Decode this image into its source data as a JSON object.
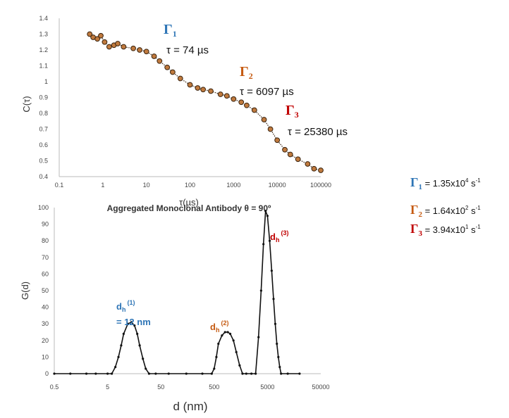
{
  "chart_data": [
    {
      "type": "scatter",
      "title": "",
      "xlabel": "τ(µs)",
      "ylabel": "C(τ)",
      "xscale": "log",
      "xlim": [
        0.1,
        100000
      ],
      "ylim": [
        0.4,
        1.4
      ],
      "x_ticks": [
        "0.1",
        "1",
        "10",
        "100",
        "1000",
        "10000",
        "100000"
      ],
      "y_ticks": [
        "0.4",
        "0.5",
        "0.6",
        "0.7",
        "0.8",
        "0.9",
        "1",
        "1.1",
        "1.2",
        "1.3",
        "1.4"
      ],
      "grid": false,
      "marker_color": "#c07a3e",
      "marker_edge": "#3a2410",
      "series": [
        {
          "x": [
            0.5,
            0.6,
            0.75,
            0.9,
            1.1,
            1.4,
            1.8,
            2.2,
            3,
            5,
            7,
            10,
            15,
            20,
            30,
            40,
            60,
            100,
            150,
            200,
            300,
            500,
            700,
            1000,
            1500,
            2000,
            3000,
            5000,
            7000,
            10000,
            15000,
            20000,
            30000,
            50000,
            70000,
            100000
          ],
          "y": [
            1.3,
            1.28,
            1.27,
            1.29,
            1.25,
            1.22,
            1.23,
            1.24,
            1.22,
            1.21,
            1.2,
            1.19,
            1.16,
            1.13,
            1.09,
            1.06,
            1.02,
            0.98,
            0.96,
            0.95,
            0.94,
            0.92,
            0.91,
            0.89,
            0.87,
            0.85,
            0.82,
            0.76,
            0.7,
            0.63,
            0.57,
            0.54,
            0.51,
            0.48,
            0.45,
            0.44
          ]
        }
      ],
      "annotations": [
        {
          "label_main": "Γ",
          "label_sub": "1",
          "tau_text": "τ = 74 µs",
          "color": "#2e75b6"
        },
        {
          "label_main": "Γ",
          "label_sub": "2",
          "tau_text": "τ = 6097 µs",
          "color": "#c55a11"
        },
        {
          "label_main": "Γ",
          "label_sub": "3",
          "tau_text": "τ = 25380 µs",
          "color": "#c00000"
        }
      ]
    },
    {
      "type": "line",
      "title": "Aggregated Monoclonal Antibody θ = 90º",
      "xlabel": "d (nm)",
      "ylabel": "G(d)",
      "xscale": "log",
      "xlim": [
        0.5,
        50000
      ],
      "ylim": [
        0,
        100
      ],
      "x_ticks": [
        "0.5",
        "5",
        "50",
        "500",
        "5000",
        "50000"
      ],
      "y_ticks": [
        "0",
        "10",
        "20",
        "30",
        "40",
        "50",
        "60",
        "70",
        "80",
        "90",
        "100"
      ],
      "grid": false,
      "line_color": "#111111",
      "series": [
        {
          "x": [
            0.5,
            1,
            2,
            3,
            5,
            6,
            7,
            8,
            9,
            10,
            12,
            14,
            16,
            18,
            20,
            23,
            26,
            30,
            40,
            70,
            150,
            300,
            450,
            500,
            550,
            600,
            700,
            800,
            900,
            1000,
            1150,
            1300,
            1500,
            1700,
            2000,
            2500,
            3000,
            3400,
            3800,
            4200,
            4600,
            5000,
            5500,
            6000,
            6500,
            7000,
            7500,
            8000,
            8500,
            9000,
            12000,
            20000
          ],
          "y": [
            0,
            0,
            0,
            0,
            0,
            0,
            4,
            10,
            17,
            24,
            30,
            31,
            29,
            24,
            17,
            9,
            3,
            0,
            0,
            0,
            0,
            0,
            0,
            3,
            10,
            18,
            23,
            25,
            25,
            24,
            20,
            13,
            5,
            0,
            0,
            0,
            0,
            22,
            50,
            78,
            98,
            95,
            80,
            62,
            45,
            30,
            18,
            10,
            4,
            0,
            0,
            0
          ]
        }
      ],
      "annotations": [
        {
          "label_main": "d",
          "label_sub": "h",
          "label_sup": "(1)",
          "value_text": "= 12 nm",
          "color": "#2e75b6"
        },
        {
          "label_main": "d",
          "label_sub": "h",
          "label_sup": "(2)",
          "value_text": "",
          "color": "#c55a11"
        },
        {
          "label_main": "d",
          "label_sub": "h",
          "label_sup": "(3)",
          "value_text": "",
          "color": "#c00000"
        }
      ]
    }
  ],
  "rates": [
    {
      "label_main": "Γ",
      "label_sub": "1",
      "text": " = 1.35x10",
      "sup": "4",
      "unit": " s",
      "unit_sup": "-1",
      "color": "#2e75b6"
    },
    {
      "label_main": "Γ",
      "label_sub": "2",
      "text": " = 1.64x10",
      "sup": "2",
      "unit": " s",
      "unit_sup": "-1",
      "color": "#c55a11"
    },
    {
      "label_main": "Γ",
      "label_sub": "3",
      "text": " = 3.94x10",
      "sup": "1",
      "unit": " s",
      "unit_sup": "-1",
      "color": "#c00000"
    }
  ]
}
